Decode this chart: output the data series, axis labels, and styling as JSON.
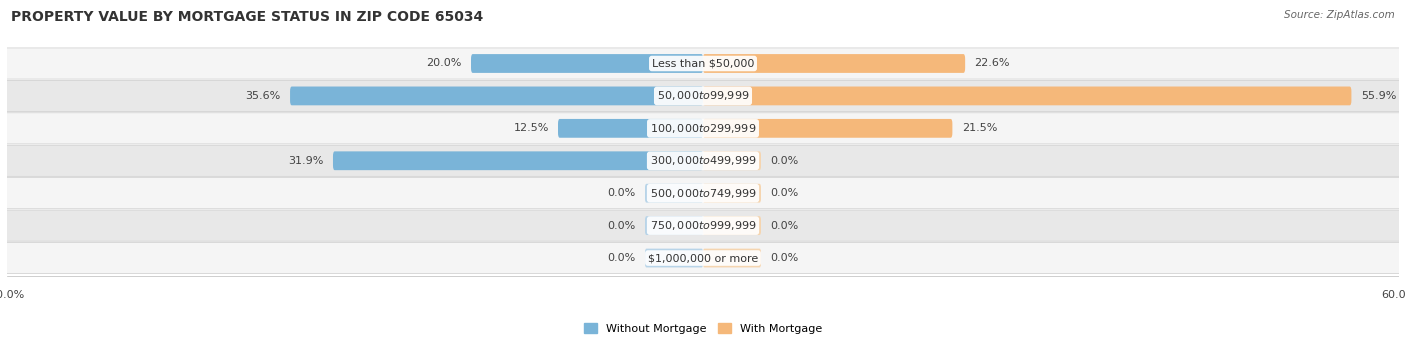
{
  "title": "PROPERTY VALUE BY MORTGAGE STATUS IN ZIP CODE 65034",
  "source": "Source: ZipAtlas.com",
  "categories": [
    "Less than $50,000",
    "$50,000 to $99,999",
    "$100,000 to $299,999",
    "$300,000 to $499,999",
    "$500,000 to $749,999",
    "$750,000 to $999,999",
    "$1,000,000 or more"
  ],
  "without_mortgage": [
    20.0,
    35.6,
    12.5,
    31.9,
    0.0,
    0.0,
    0.0
  ],
  "with_mortgage": [
    22.6,
    55.9,
    21.5,
    0.0,
    0.0,
    0.0,
    0.0
  ],
  "without_mortgage_color": "#7ab4d8",
  "with_mortgage_color": "#f5b87a",
  "zero_without_color": "#b8d4e8",
  "zero_with_color": "#f5d5b0",
  "row_bg_light": "#f5f5f5",
  "row_bg_dark": "#e8e8e8",
  "axis_limit": 60.0,
  "legend_labels": [
    "Without Mortgage",
    "With Mortgage"
  ],
  "title_fontsize": 10,
  "source_fontsize": 7.5,
  "label_fontsize": 8,
  "category_fontsize": 8,
  "axis_label_fontsize": 8,
  "zero_stub_size": 5.0
}
